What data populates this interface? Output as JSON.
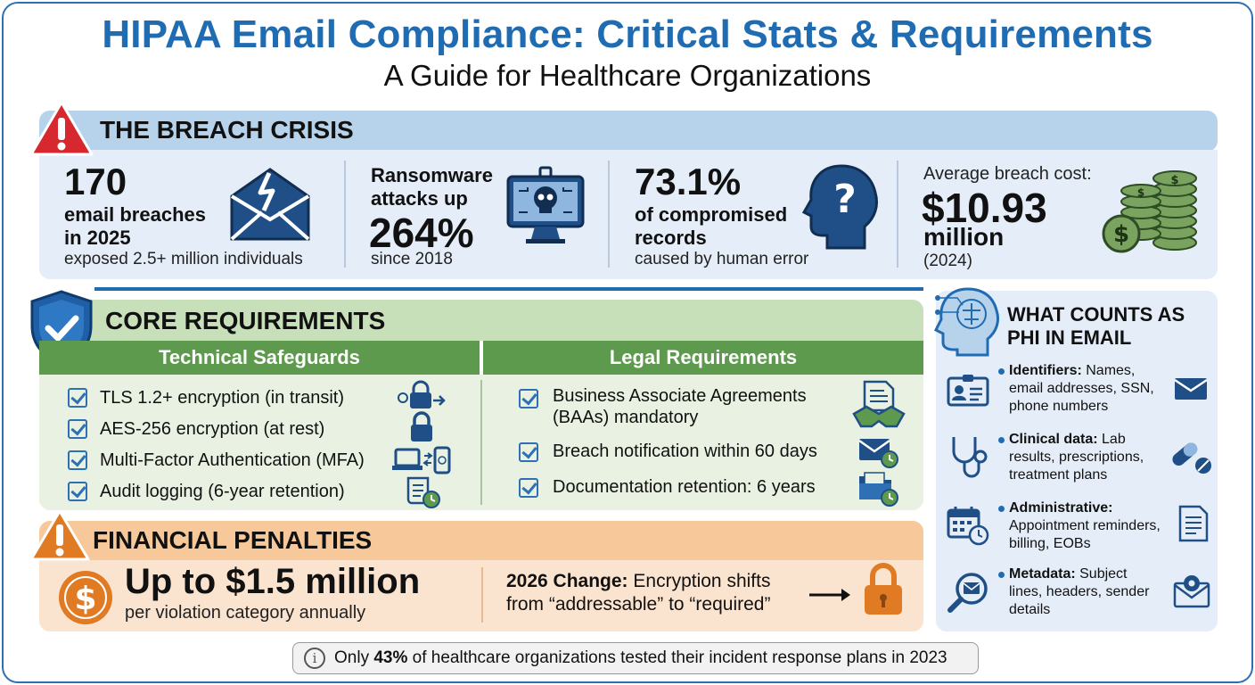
{
  "header": {
    "title": "HIPAA Email Compliance: Critical Stats & Requirements",
    "subtitle": "A Guide for Healthcare Organizations"
  },
  "breach_crisis": {
    "title": "THE BREACH CRISIS",
    "icon": "warning-icon",
    "stats": [
      {
        "big": "170",
        "mid": "email breaches\nin 2025",
        "small": "exposed 2.5+ million individuals",
        "icon": "broken-envelope-icon"
      },
      {
        "pre": "Ransomware\nattacks up",
        "big": "264%",
        "small": "since 2018",
        "icon": "skull-monitor-icon"
      },
      {
        "big": "73.1%",
        "mid": "of compromised\nrecords",
        "small": "caused by human error",
        "icon": "head-question-icon"
      },
      {
        "pre": "Average breach cost:",
        "big": "$10.93",
        "mid": "million",
        "small": "(2024)",
        "icon": "money-stack-icon"
      }
    ]
  },
  "core_requirements": {
    "title": "CORE REQUIREMENTS",
    "icon": "shield-check-icon",
    "technical": {
      "header": "Technical Safeguards",
      "items": [
        {
          "label": "TLS 1.2+ encryption (in transit)",
          "icon": "lock-transit-icon"
        },
        {
          "label": "AES-256 encryption (at rest)",
          "icon": "lock-icon"
        },
        {
          "label": "Multi-Factor Authentication (MFA)",
          "icon": "laptop-phone-icon"
        },
        {
          "label": "Audit logging (6-year retention)",
          "icon": "scroll-clock-icon"
        }
      ]
    },
    "legal": {
      "header": "Legal Requirements",
      "items": [
        {
          "label": "Business Associate Agreements\n(BAAs) mandatory",
          "icon": "handshake-document-icon"
        },
        {
          "label": "Breach notification within 60 days",
          "icon": "envelope-clock-icon"
        },
        {
          "label": "Documentation retention: 6 years",
          "icon": "folder-clock-icon"
        }
      ]
    }
  },
  "financial_penalties": {
    "title": "FINANCIAL PENALTIES",
    "icon": "warning-icon",
    "amount": "Up to $1.5 million",
    "amount_sub": "per violation category annually",
    "change_label": "2026 Change:",
    "change_text_1": " Encryption shifts",
    "change_text_2": "from “addressable” to “required”",
    "icons": [
      "dollar-coin-icon",
      "arrow-right-icon",
      "lock-icon"
    ]
  },
  "phi": {
    "title_1": "WHAT COUNTS AS",
    "title_2": "PHI IN EMAIL",
    "icon": "brain-head-icon",
    "items": [
      {
        "label": "Identifiers:",
        "text_1": " Names,",
        "text_2": "email addresses, SSN,",
        "text_3": "phone numbers",
        "icons": [
          "id-card-icon",
          "envelope-icon"
        ]
      },
      {
        "label": "Clinical data:",
        "text_1": " Lab",
        "text_2": "results, prescriptions,",
        "text_3": "treatment plans",
        "icons": [
          "stethoscope-icon",
          "pill-icon"
        ]
      },
      {
        "label": "Administrative:",
        "text_1": "",
        "text_2": "Appointment reminders,",
        "text_3": "billing, EOBs",
        "icons": [
          "calendar-clock-icon",
          "document-icon"
        ]
      },
      {
        "label": "Metadata:",
        "text_1": " Subject",
        "text_2": "lines, headers, sender",
        "text_3": "details",
        "icons": [
          "magnifier-envelope-icon",
          "envelope-gear-icon"
        ]
      }
    ]
  },
  "note": {
    "icon": "info-icon",
    "pre": "Only ",
    "highlight": "43%",
    "post": " of healthcare organizations tested their incident response plans in 2023"
  },
  "colors": {
    "primary_blue": "#1f6cb3",
    "green": "#5e9a4e",
    "orange": "#e07b24",
    "red": "#d8282f"
  }
}
